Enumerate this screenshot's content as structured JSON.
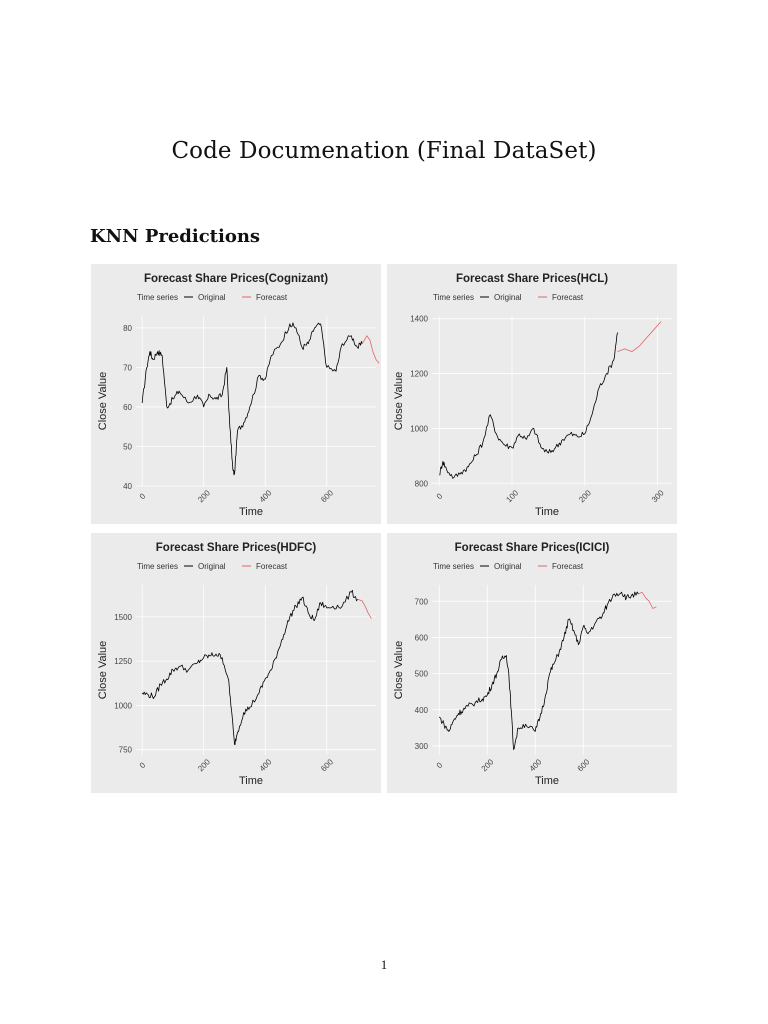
{
  "document": {
    "title": "Code Documenation (Final DataSet)",
    "section_heading": "KNN Predictions",
    "page_number": "1"
  },
  "colors": {
    "panel_bg": "#ebebeb",
    "grid": "#ffffff",
    "original": "#000000",
    "forecast": "#e06666"
  },
  "chart_data": [
    {
      "type": "line",
      "title": "Forecast Share Prices(Cognizant)",
      "xlabel": "Time",
      "ylabel": "Close Value",
      "legend_title": "Time series",
      "legend": [
        "Original",
        "Forecast"
      ],
      "x_ticks": [
        "0",
        "200",
        "400",
        "600"
      ],
      "xlim": [
        -20,
        760
      ],
      "y_ticks": [
        "40",
        "50",
        "60",
        "70",
        "80"
      ],
      "ylim": [
        40,
        83
      ],
      "series": [
        {
          "name": "Original",
          "x": [
            0,
            15,
            25,
            35,
            50,
            65,
            80,
            100,
            120,
            150,
            180,
            200,
            220,
            240,
            260,
            275,
            285,
            295,
            300,
            310,
            330,
            350,
            380,
            400,
            420,
            450,
            480,
            500,
            520,
            540,
            560,
            580,
            600,
            630,
            650,
            680,
            700,
            715
          ],
          "values": [
            61,
            70,
            74,
            72,
            74,
            73,
            60,
            62,
            64,
            61,
            63,
            60,
            63,
            62,
            63,
            70,
            55,
            44,
            43,
            54,
            56,
            60,
            68,
            67,
            73,
            76,
            81,
            80,
            75,
            76,
            80,
            81,
            70,
            69,
            76,
            78,
            75,
            76
          ]
        },
        {
          "name": "Forecast",
          "x": [
            715,
            730,
            740,
            750,
            760,
            770
          ],
          "values": [
            76,
            78,
            77,
            74,
            72,
            71
          ]
        }
      ]
    },
    {
      "type": "line",
      "title": "Forecast Share Prices(HCL)",
      "xlabel": "Time",
      "ylabel": "Close Value",
      "legend_title": "Time series",
      "legend": [
        "Original",
        "Forecast"
      ],
      "x_ticks": [
        "0",
        "100",
        "200",
        "300"
      ],
      "xlim": [
        -10,
        320
      ],
      "y_ticks": [
        "800",
        "1000",
        "1200",
        "1400"
      ],
      "ylim": [
        790,
        1410
      ],
      "series": [
        {
          "name": "Original",
          "x": [
            0,
            5,
            10,
            20,
            30,
            40,
            50,
            60,
            70,
            80,
            90,
            100,
            110,
            120,
            130,
            140,
            150,
            160,
            170,
            180,
            190,
            200,
            210,
            220,
            230,
            240,
            245
          ],
          "values": [
            830,
            880,
            850,
            820,
            840,
            860,
            900,
            950,
            1050,
            970,
            940,
            930,
            980,
            960,
            1000,
            930,
            910,
            930,
            960,
            980,
            970,
            980,
            1050,
            1150,
            1200,
            1250,
            1350
          ]
        },
        {
          "name": "Forecast",
          "x": [
            245,
            255,
            265,
            275,
            285,
            295,
            305
          ],
          "values": [
            1280,
            1290,
            1280,
            1300,
            1330,
            1360,
            1390
          ]
        }
      ]
    },
    {
      "type": "line",
      "title": "Forecast Share Prices(HDFC)",
      "xlabel": "Time",
      "ylabel": "Close Value",
      "legend_title": "Time series",
      "legend": [
        "Original",
        "Forecast"
      ],
      "x_ticks": [
        "0",
        "200",
        "400",
        "600"
      ],
      "xlim": [
        -20,
        760
      ],
      "y_ticks": [
        "750",
        "1000",
        "1250",
        "1500"
      ],
      "ylim": [
        720,
        1680
      ],
      "series": [
        {
          "name": "Original",
          "x": [
            0,
            20,
            40,
            60,
            80,
            100,
            120,
            150,
            180,
            200,
            220,
            240,
            260,
            280,
            290,
            300,
            310,
            330,
            350,
            380,
            400,
            420,
            440,
            460,
            480,
            500,
            520,
            540,
            560,
            580,
            600,
            620,
            650,
            680,
            700
          ],
          "values": [
            1070,
            1060,
            1050,
            1120,
            1150,
            1200,
            1220,
            1200,
            1240,
            1270,
            1280,
            1290,
            1270,
            1150,
            980,
            780,
            850,
            960,
            990,
            1070,
            1150,
            1200,
            1300,
            1400,
            1500,
            1560,
            1610,
            1520,
            1480,
            1580,
            1550,
            1560,
            1560,
            1640,
            1600
          ]
        },
        {
          "name": "Forecast",
          "x": [
            700,
            715,
            725,
            735,
            745
          ],
          "values": [
            1600,
            1590,
            1560,
            1520,
            1490
          ]
        }
      ]
    },
    {
      "type": "line",
      "title": "Forecast Share Prices(ICICI)",
      "xlabel": "Time",
      "ylabel": "Close Value",
      "legend_title": "Time series",
      "legend": [
        "Original",
        "Forecast"
      ],
      "x_ticks": [
        "0",
        "200",
        "400",
        "600"
      ],
      "xlim": [
        -30,
        970
      ],
      "y_ticks": [
        "300",
        "400",
        "500",
        "600",
        "700"
      ],
      "ylim": [
        275,
        745
      ],
      "series": [
        {
          "name": "Original",
          "x": [
            0,
            20,
            40,
            60,
            80,
            100,
            120,
            150,
            180,
            200,
            220,
            240,
            260,
            280,
            290,
            300,
            310,
            330,
            360,
            400,
            420,
            440,
            460,
            480,
            500,
            520,
            540,
            560,
            580,
            600,
            620,
            650,
            680,
            700,
            730,
            760,
            780,
            800,
            830
          ],
          "values": [
            380,
            360,
            340,
            370,
            390,
            400,
            410,
            420,
            430,
            440,
            470,
            500,
            540,
            550,
            500,
            400,
            290,
            350,
            360,
            340,
            380,
            430,
            500,
            530,
            560,
            600,
            650,
            620,
            580,
            630,
            610,
            640,
            660,
            690,
            720,
            725,
            710,
            715,
            720
          ]
        },
        {
          "name": "Forecast",
          "x": [
            830,
            845,
            860,
            875,
            890,
            905
          ],
          "values": [
            720,
            725,
            710,
            700,
            680,
            685
          ]
        }
      ]
    }
  ]
}
